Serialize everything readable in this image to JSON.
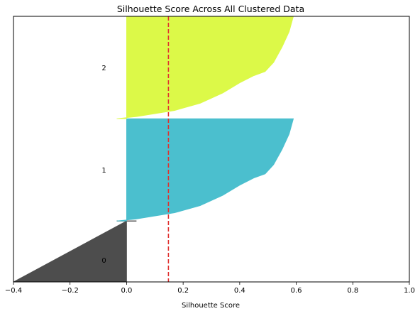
{
  "chart_data": {
    "type": "area",
    "title": "Silhouette Score Across All Clustered Data",
    "xlabel": "Silhouette Score",
    "ylabel": "",
    "xlim": [
      -0.4,
      1.0
    ],
    "x_ticks": [
      "−0.4",
      "−0.2",
      "0.0",
      "0.2",
      "0.4",
      "0.6",
      "0.8",
      "1.0"
    ],
    "x_tick_values": [
      -0.4,
      -0.2,
      0.0,
      0.2,
      0.4,
      0.6,
      0.8,
      1.0
    ],
    "grid": false,
    "legend": "none",
    "average_silhouette_line": {
      "x": 0.148,
      "color": "#e0312f",
      "style": "dashed"
    },
    "clusters": [
      {
        "label": "0",
        "color": "#4d4d4d",
        "sample_range": [
          0,
          106
        ],
        "label_position": 38,
        "profile": [
          [
            0.0,
            -0.4
          ],
          [
            1.0,
            0.0
          ]
        ],
        "spike": {
          "at": 1.0,
          "min": -0.035,
          "max": 0.035
        }
      },
      {
        "label": "1",
        "color": "#4bbfce",
        "sample_range": [
          106,
          284
        ],
        "label_position": 195,
        "profile": [
          [
            0.0,
            -0.035
          ],
          [
            0.02,
            0.035
          ],
          [
            0.08,
            0.17
          ],
          [
            0.15,
            0.26
          ],
          [
            0.25,
            0.34
          ],
          [
            0.35,
            0.4
          ],
          [
            0.42,
            0.45
          ],
          [
            0.46,
            0.49
          ],
          [
            0.55,
            0.52
          ],
          [
            0.7,
            0.55
          ],
          [
            0.85,
            0.575
          ],
          [
            1.0,
            0.59
          ]
        ]
      },
      {
        "label": "2",
        "color": "#dcf948",
        "sample_range": [
          284,
          462
        ],
        "label_position": 373,
        "profile": [
          [
            0.0,
            -0.035
          ],
          [
            0.02,
            0.035
          ],
          [
            0.08,
            0.17
          ],
          [
            0.15,
            0.26
          ],
          [
            0.25,
            0.34
          ],
          [
            0.35,
            0.4
          ],
          [
            0.42,
            0.45
          ],
          [
            0.46,
            0.49
          ],
          [
            0.55,
            0.52
          ],
          [
            0.7,
            0.55
          ],
          [
            0.85,
            0.575
          ],
          [
            1.0,
            0.59
          ]
        ]
      }
    ],
    "y_range": [
      0,
      462
    ]
  }
}
